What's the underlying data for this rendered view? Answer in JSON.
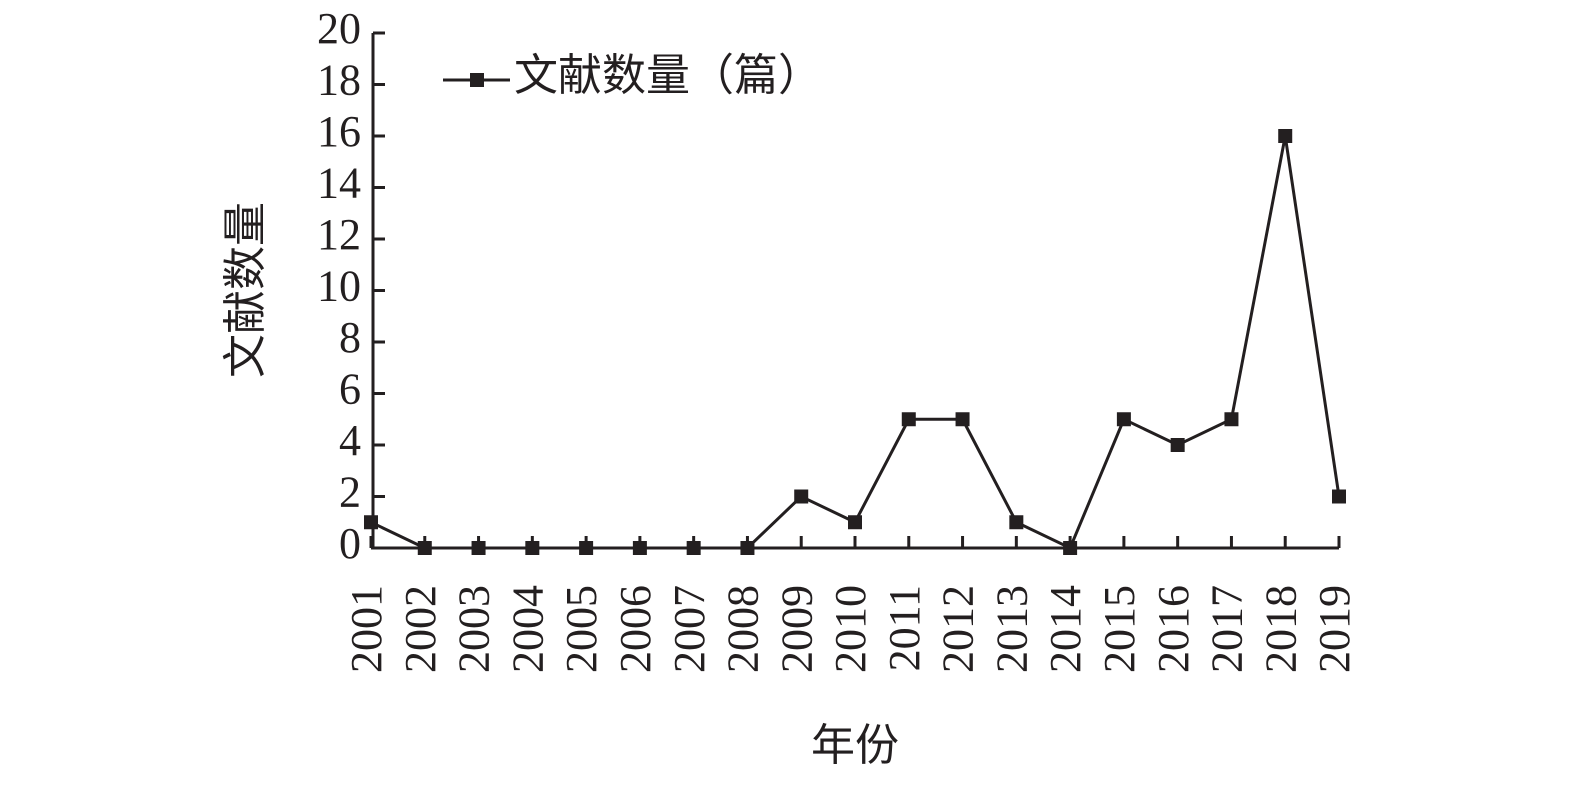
{
  "chart_data": {
    "type": "line",
    "legend_label": "文献数量（篇）",
    "y_label": "文献数量",
    "x_label": "年份",
    "categories": [
      "2001",
      "2002",
      "2003",
      "2004",
      "2005",
      "2006",
      "2007",
      "2008",
      "2009",
      "2010",
      "2011",
      "2012",
      "2013",
      "2014",
      "2015",
      "2016",
      "2017",
      "2018",
      "2019"
    ],
    "series": [
      {
        "name": "文献数量（篇）",
        "color": "#231f20",
        "values": [
          1,
          0,
          0,
          0,
          0,
          0,
          0,
          0,
          2,
          1,
          5,
          5,
          1,
          0,
          5,
          4,
          5,
          16,
          2
        ]
      }
    ],
    "ylim": [
      0,
      20
    ],
    "yticks": [
      0,
      2,
      4,
      6,
      8,
      10,
      12,
      14,
      16,
      18,
      20
    ],
    "legend": "top-left"
  }
}
